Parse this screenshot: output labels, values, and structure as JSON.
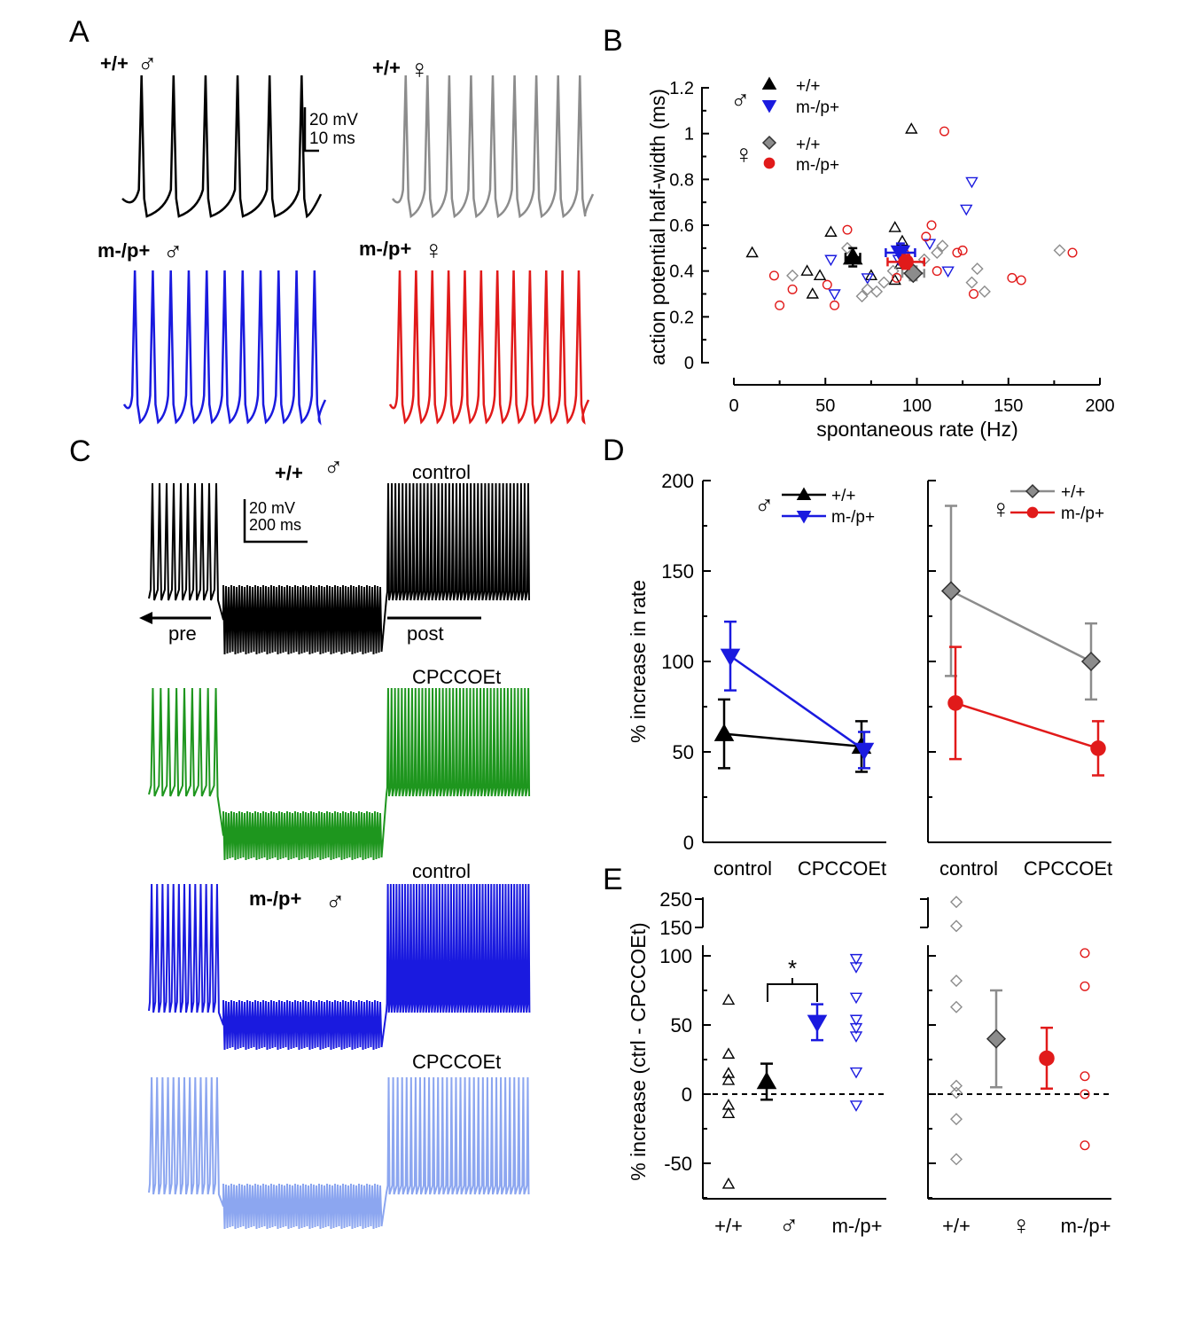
{
  "colors": {
    "wt_male": "#000000",
    "mut_male": "#1a1adf",
    "wt_female": "#8c8c8c",
    "mut_female": "#e11a1a",
    "cpccoet_wt": "#1e961e",
    "cpccoet_mut": "#8ca6f0"
  },
  "symbols": {
    "male": "♂",
    "female": "♀"
  },
  "panel_a": {
    "label": "A",
    "traces": [
      {
        "title": "+/+",
        "sex": "♂",
        "color": "#000000",
        "spike_count": 6
      },
      {
        "title": "+/+",
        "sex": "♀",
        "color": "#8c8c8c",
        "spike_count": 9
      },
      {
        "title": "m-/p+",
        "sex": "♂",
        "color": "#1a1adf",
        "spike_count": 11
      },
      {
        "title": "m-/p+",
        "sex": "♀",
        "color": "#e11a1a",
        "spike_count": 12
      }
    ],
    "scale_bar": {
      "voltage": "20 mV",
      "time": "10 ms"
    }
  },
  "panel_c": {
    "label": "C",
    "genotype_top": "+/+",
    "genotype_bottom": "m-/p+",
    "sex": "♂",
    "scale_bar": {
      "voltage": "20 mV",
      "time": "200 ms"
    },
    "pre_label": "pre",
    "post_label": "post",
    "traces": [
      {
        "condition": "control",
        "color": "#000000",
        "pre_spikes": 10,
        "post_spikes": 40
      },
      {
        "condition": "CPCCOEt",
        "color": "#1e961e",
        "pre_spikes": 9,
        "post_spikes": 42
      },
      {
        "condition": "control",
        "color": "#1a1adf",
        "pre_spikes": 13,
        "post_spikes": 50
      },
      {
        "condition": "CPCCOEt",
        "color": "#8ca6f0",
        "pre_spikes": 13,
        "post_spikes": 32
      }
    ]
  },
  "chart_data": [
    {
      "panel": "B",
      "type": "scatter",
      "xlabel": "spontaneous rate (Hz)",
      "ylabel": "action potential half-width (ms)",
      "xlim": [
        0,
        200
      ],
      "ylim": [
        0,
        1.2
      ],
      "xticks": [
        "0",
        "50",
        "100",
        "150",
        "200"
      ],
      "yticks": [
        "0",
        "0.2",
        "0.4",
        "0.6",
        "0.8",
        "1",
        "1.2"
      ],
      "legend": [
        {
          "group": "♂",
          "label": "+/+",
          "marker": "triangle-up",
          "color": "#000000"
        },
        {
          "group": "♂",
          "label": "m-/p+",
          "marker": "triangle-down",
          "color": "#1a1adf"
        },
        {
          "group": "♀",
          "label": "+/+",
          "marker": "diamond",
          "color": "#8c8c8c"
        },
        {
          "group": "♀",
          "label": "m-/p+",
          "marker": "circle",
          "color": "#e11a1a"
        }
      ],
      "series": [
        {
          "name": "♂ +/+",
          "marker": "triangle-up",
          "color": "#000000",
          "points": [
            [
              10,
              0.48
            ],
            [
              40,
              0.4
            ],
            [
              43,
              0.3
            ],
            [
              47,
              0.38
            ],
            [
              53,
              0.57
            ],
            [
              75,
              0.38
            ],
            [
              88,
              0.59
            ],
            [
              88,
              0.36
            ],
            [
              91,
              0.43
            ],
            [
              92,
              0.53
            ],
            [
              97,
              1.02
            ]
          ],
          "mean": [
            65,
            0.46
          ],
          "xerr": 4,
          "yerr": 0.04
        },
        {
          "name": "♂ m-/p+",
          "marker": "triangle-down",
          "color": "#1a1adf",
          "points": [
            [
              53,
              0.45
            ],
            [
              55,
              0.3
            ],
            [
              73,
              0.37
            ],
            [
              90,
              0.45
            ],
            [
              107,
              0.52
            ],
            [
              117,
              0.4
            ],
            [
              127,
              0.67
            ],
            [
              130,
              0.79
            ]
          ],
          "mean": [
            91,
            0.48
          ],
          "xerr": 8,
          "yerr": 0.04
        },
        {
          "name": "♀ +/+",
          "marker": "diamond",
          "color": "#8c8c8c",
          "points": [
            [
              32,
              0.38
            ],
            [
              62,
              0.5
            ],
            [
              70,
              0.29
            ],
            [
              73,
              0.32
            ],
            [
              78,
              0.31
            ],
            [
              82,
              0.35
            ],
            [
              87,
              0.4
            ],
            [
              97,
              0.38
            ],
            [
              104,
              0.45
            ],
            [
              111,
              0.48
            ],
            [
              114,
              0.51
            ],
            [
              130,
              0.35
            ],
            [
              133,
              0.41
            ],
            [
              137,
              0.31
            ],
            [
              178,
              0.49
            ]
          ],
          "mean": [
            98,
            0.39
          ],
          "xerr": 6,
          "yerr": 0.03
        },
        {
          "name": "♀ m-/p+",
          "marker": "circle",
          "color": "#e11a1a",
          "points": [
            [
              22,
              0.38
            ],
            [
              25,
              0.25
            ],
            [
              32,
              0.32
            ],
            [
              51,
              0.34
            ],
            [
              55,
              0.25
            ],
            [
              62,
              0.58
            ],
            [
              89,
              0.37
            ],
            [
              93,
              0.48
            ],
            [
              105,
              0.55
            ],
            [
              108,
              0.6
            ],
            [
              111,
              0.4
            ],
            [
              115,
              1.01
            ],
            [
              122,
              0.48
            ],
            [
              125,
              0.49
            ],
            [
              131,
              0.3
            ],
            [
              152,
              0.37
            ],
            [
              157,
              0.36
            ],
            [
              185,
              0.48
            ]
          ],
          "mean": [
            94,
            0.44
          ],
          "xerr": 10,
          "yerr": 0.03
        }
      ]
    },
    {
      "panel": "D",
      "type": "line",
      "ylabel": "% increase in rate",
      "ylim": [
        0,
        200
      ],
      "yticks": [
        "0",
        "50",
        "100",
        "150",
        "200"
      ],
      "categories": [
        "control",
        "CPCCOEt"
      ],
      "subplots": [
        {
          "sex": "♂",
          "series": [
            {
              "name": "+/+",
              "marker": "triangle-up",
              "color": "#000000",
              "values": [
                60,
                53
              ],
              "err": [
                19,
                14
              ]
            },
            {
              "name": "m-/p+",
              "marker": "triangle-down",
              "color": "#1a1adf",
              "values": [
                103,
                51
              ],
              "err": [
                19,
                10
              ]
            }
          ]
        },
        {
          "sex": "♀",
          "series": [
            {
              "name": "+/+",
              "marker": "diamond",
              "color": "#8c8c8c",
              "values": [
                139,
                100
              ],
              "err": [
                47,
                21
              ]
            },
            {
              "name": "m-/p+",
              "marker": "circle",
              "color": "#e11a1a",
              "values": [
                77,
                52
              ],
              "err": [
                31,
                15
              ]
            }
          ]
        }
      ]
    },
    {
      "panel": "E",
      "type": "scatter",
      "ylabel": "% increase (ctrl - CPCCOEt)",
      "ylim": [
        -75,
        105
      ],
      "break_ylim": [
        140,
        260
      ],
      "yticks": [
        "-50",
        "0",
        "50",
        "100"
      ],
      "break_yticks": [
        "150",
        "250"
      ],
      "significance": "*",
      "subplots": [
        {
          "sex": "♂",
          "categories": [
            "+/+",
            "m-/p+"
          ],
          "series": [
            {
              "name": "+/+",
              "marker": "triangle-up",
              "color": "#000000",
              "points": [
                68,
                29,
                15,
                10,
                -8,
                -14,
                -65
              ],
              "mean": 9,
              "err": 13
            },
            {
              "name": "m-/p+",
              "marker": "triangle-down",
              "color": "#1a1adf",
              "points": [
                98,
                92,
                70,
                54,
                48,
                42,
                16,
                -8
              ],
              "mean": 52,
              "err": 13
            }
          ]
        },
        {
          "sex": "♀",
          "categories": [
            "+/+",
            "m-/p+"
          ],
          "series": [
            {
              "name": "+/+",
              "marker": "diamond",
              "color": "#8c8c8c",
              "points": [
                240,
                155,
                82,
                63,
                6,
                1,
                -18,
                -47
              ],
              "mean": 40,
              "err": 35
            },
            {
              "name": "m-/p+",
              "marker": "circle",
              "color": "#e11a1a",
              "points": [
                102,
                78,
                13,
                0,
                -37
              ],
              "mean": 26,
              "err": 22
            }
          ]
        }
      ]
    }
  ]
}
